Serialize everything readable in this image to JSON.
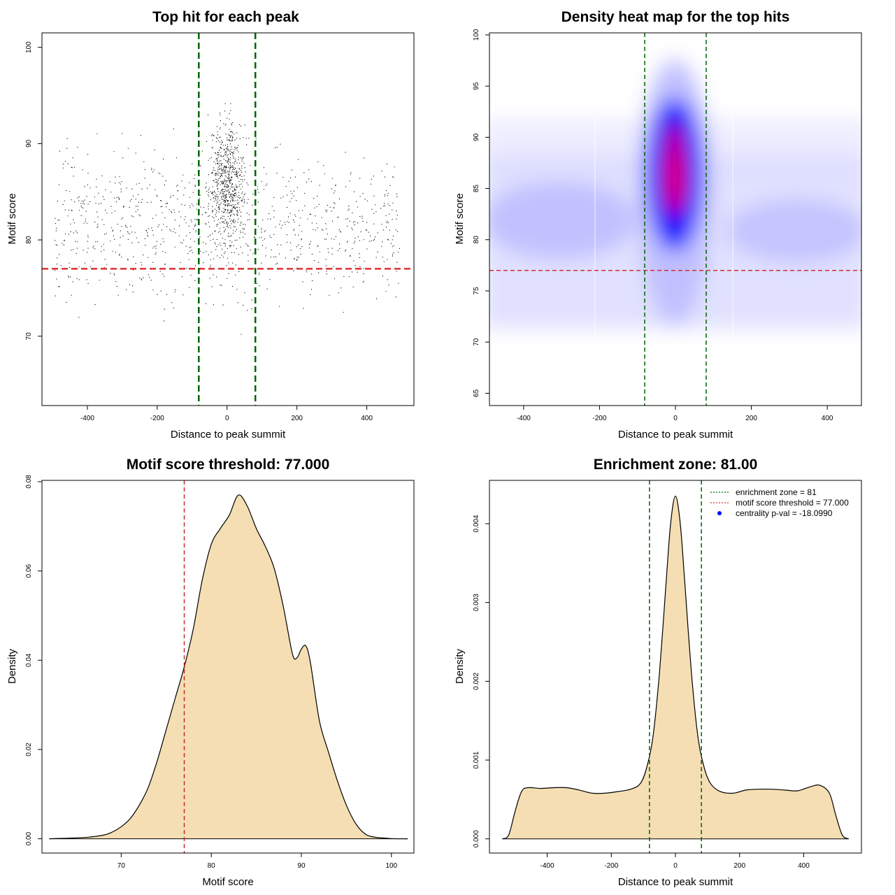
{
  "chart_data": [
    {
      "id": "scatter",
      "type": "scatter",
      "title": "Top hit for each peak",
      "xlabel": "Distance to peak summit",
      "ylabel": "Motif score",
      "xlim": [
        -530,
        535
      ],
      "ylim": [
        62.8,
        101.5
      ],
      "xticks": [
        -400,
        -200,
        0,
        200,
        400
      ],
      "yticks": [
        70,
        80,
        90,
        100
      ],
      "hline": 77,
      "vlines": [
        -81,
        81
      ],
      "point_color": "#000000"
    },
    {
      "id": "heatmap",
      "type": "heatmap",
      "title": "Density heat map for the top hits",
      "xlabel": "Distance to peak summit",
      "ylabel": "Motif score",
      "xlim": [
        -490,
        490
      ],
      "ylim": [
        63.8,
        100.2
      ],
      "xticks": [
        -400,
        -200,
        0,
        200,
        400
      ],
      "yticks": [
        65,
        70,
        75,
        80,
        85,
        90,
        95,
        100
      ],
      "hline": 77,
      "vlines": [
        -81,
        81
      ],
      "colors": [
        "#ffffff",
        "#0000ff",
        "#ff0000"
      ]
    },
    {
      "id": "score-density",
      "type": "area",
      "title": "Motif score threshold: 77.000",
      "xlabel": "Motif score",
      "ylabel": "Density",
      "xlim": [
        61.2,
        102.5
      ],
      "ylim": [
        -0.0032,
        0.0803
      ],
      "xticks": [
        70,
        80,
        90,
        100
      ],
      "yticks": [
        0.0,
        0.02,
        0.04,
        0.06,
        0.08
      ],
      "ytick_labels": [
        "0.00",
        "0.02",
        "0.04",
        "0.06",
        "0.08"
      ],
      "vline": 77,
      "fill_color": "#f5deb3",
      "x": [
        62,
        66,
        68,
        69,
        70,
        71,
        72,
        73,
        74,
        75,
        76,
        77,
        78,
        79,
        80,
        81,
        82,
        83,
        84,
        85,
        86,
        87,
        88,
        89,
        89.5,
        90,
        90.5,
        91,
        92,
        93,
        94,
        95,
        96,
        97,
        98,
        100,
        101.8
      ],
      "values": [
        0,
        0.0003,
        0.0008,
        0.0015,
        0.0027,
        0.0045,
        0.0075,
        0.0115,
        0.0175,
        0.0245,
        0.0315,
        0.0385,
        0.047,
        0.058,
        0.066,
        0.0695,
        0.0725,
        0.077,
        0.0745,
        0.0695,
        0.0655,
        0.0605,
        0.052,
        0.0415,
        0.0405,
        0.0425,
        0.0432,
        0.0395,
        0.0265,
        0.0195,
        0.013,
        0.0075,
        0.0035,
        0.0012,
        0.0004,
        5e-05,
        0
      ]
    },
    {
      "id": "distance-density",
      "type": "area",
      "title": "Enrichment zone: 81.00",
      "xlabel": "Distance to peak summit",
      "ylabel": "Density",
      "xlim": [
        -580,
        580
      ],
      "ylim": [
        -0.00018,
        0.00455
      ],
      "xticks": [
        -400,
        -200,
        0,
        200,
        400
      ],
      "yticks": [
        0.0,
        0.001,
        0.002,
        0.003,
        0.004
      ],
      "ytick_labels": [
        "0.000",
        "0.001",
        "0.002",
        "0.003",
        "0.004"
      ],
      "vlines": [
        -81,
        81
      ],
      "fill_color": "#f5deb3",
      "x": [
        -540,
        -520,
        -500,
        -480,
        -460,
        -420,
        -380,
        -340,
        -300,
        -260,
        -220,
        -180,
        -140,
        -110,
        -90,
        -70,
        -50,
        -30,
        -15,
        0,
        15,
        30,
        50,
        70,
        90,
        110,
        140,
        180,
        220,
        260,
        300,
        340,
        380,
        420,
        450,
        480,
        500,
        520,
        540
      ],
      "values": [
        0,
        5e-05,
        0.00035,
        0.0006,
        0.00065,
        0.00064,
        0.00065,
        0.00065,
        0.00062,
        0.00058,
        0.00058,
        0.0006,
        0.00063,
        0.0007,
        0.0009,
        0.0013,
        0.0021,
        0.0032,
        0.004,
        0.00435,
        0.004,
        0.0032,
        0.0021,
        0.0013,
        0.0009,
        0.0007,
        0.0006,
        0.00058,
        0.00062,
        0.00063,
        0.00063,
        0.00062,
        0.00061,
        0.00066,
        0.00068,
        0.00058,
        0.0003,
        5e-05,
        0
      ]
    }
  ],
  "legend": {
    "items": [
      {
        "label": "enrichment zone = 81",
        "color": "#006400",
        "style": "dotted-line"
      },
      {
        "label": "motif score threshold = 77.000",
        "color": "#e03030",
        "style": "dotted-line"
      },
      {
        "label": "centrality p-val = -18.0990",
        "color": "#0000ff",
        "style": "dot"
      }
    ]
  }
}
